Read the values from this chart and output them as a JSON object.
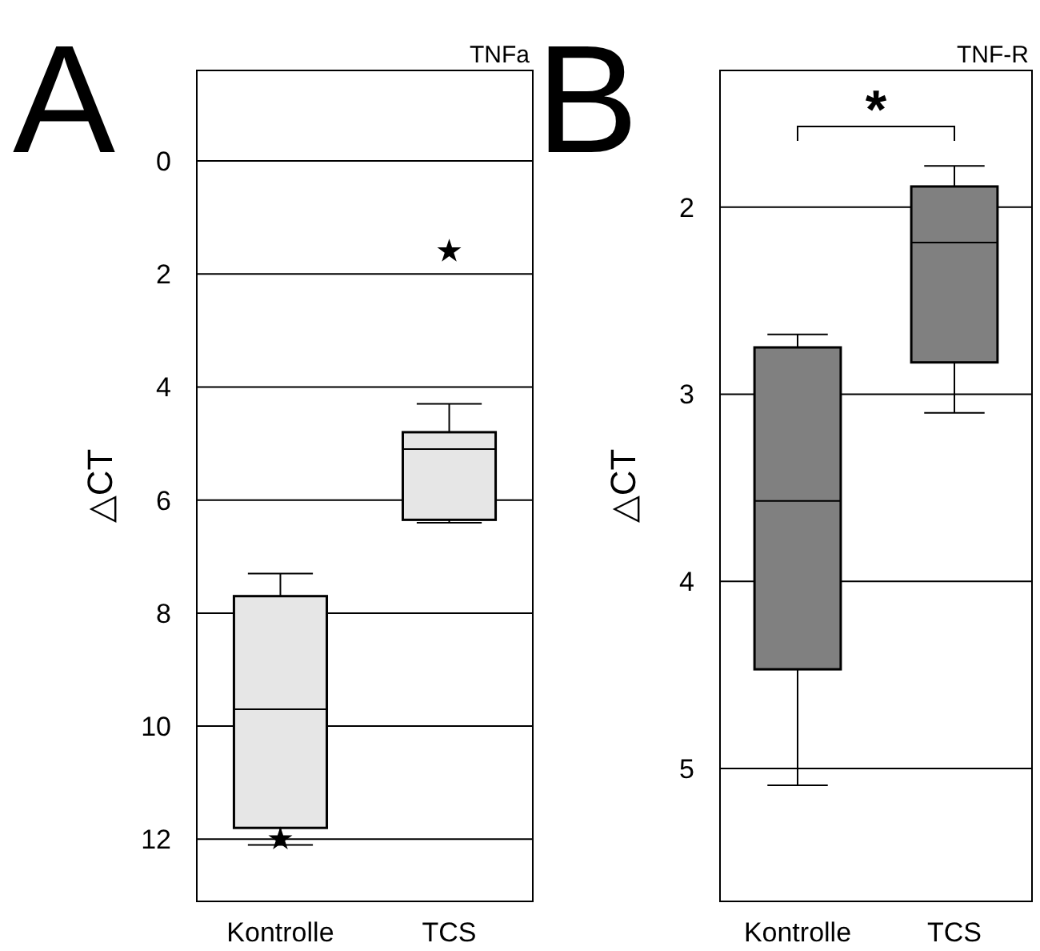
{
  "chart_data": [
    {
      "type": "box",
      "title": "TNFa",
      "ylabel": "△CT",
      "categories": [
        "Kontrolle",
        "TCS"
      ],
      "colors": [
        "#e6e6e6",
        "#e6e6e6"
      ],
      "ylim": [
        13.1,
        -1.6
      ],
      "yticks": [
        0,
        2,
        4,
        6,
        8,
        10,
        12
      ],
      "grid": "y",
      "marker": "star",
      "annotations": [
        "A"
      ],
      "boxes": [
        {
          "low": 7.3,
          "q1": 7.7,
          "median": 9.7,
          "q3": 11.8,
          "high": 12.1,
          "outliers": [
            12.0
          ]
        },
        {
          "low": 4.3,
          "q1": 4.8,
          "median": 5.1,
          "q3": 6.35,
          "high": 6.4,
          "outliers": [
            1.6
          ]
        }
      ]
    },
    {
      "type": "box",
      "title": "TNF-R",
      "ylabel": "△CT",
      "categories": [
        "Kontrolle",
        "TCS"
      ],
      "colors": [
        "#808080",
        "#808080"
      ],
      "ylim": [
        5.71,
        1.27
      ],
      "yticks": [
        2,
        3,
        4,
        5
      ],
      "grid": "y",
      "annotations": [
        "B",
        "*"
      ],
      "boxes": [
        {
          "low": 2.68,
          "q1": 2.75,
          "median": 3.57,
          "q3": 4.47,
          "high": 5.09
        },
        {
          "low": 1.78,
          "q1": 1.89,
          "median": 2.19,
          "q3": 2.83,
          "high": 3.1
        }
      ]
    }
  ]
}
